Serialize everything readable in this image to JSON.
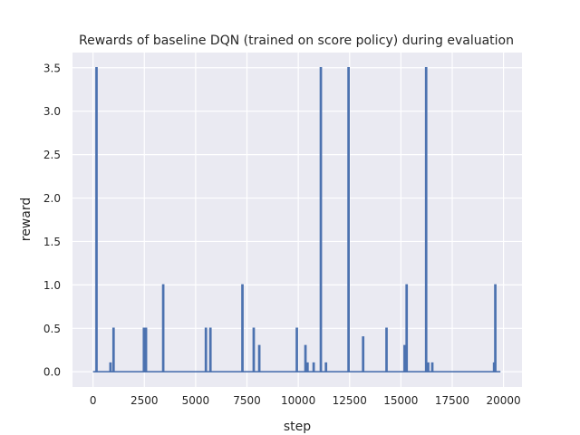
{
  "chart_data": {
    "type": "line",
    "title": "Rewards of baseline DQN (trained on score policy) during evaluation",
    "xlabel": "step",
    "ylabel": "reward",
    "xlim": [
      -1000,
      20900
    ],
    "ylim": [
      -0.175,
      3.675
    ],
    "xticks": [
      0,
      2500,
      5000,
      7500,
      10000,
      12500,
      15000,
      17500,
      20000
    ],
    "yticks": [
      0.0,
      0.5,
      1.0,
      1.5,
      2.0,
      2.5,
      3.0,
      3.5
    ],
    "xtick_labels": [
      "0",
      "2500",
      "5000",
      "7500",
      "10000",
      "12500",
      "15000",
      "17500",
      "20000"
    ],
    "ytick_labels": [
      "0.0",
      "0.5",
      "1.0",
      "1.5",
      "2.0",
      "2.5",
      "3.0",
      "3.5"
    ],
    "grid": true,
    "baseline": 0.0,
    "x_end": 19850,
    "series": [
      {
        "color": "#4c72b0",
        "spikes": [
          {
            "x": 170,
            "y": 3.5
          },
          {
            "x": 850,
            "y": 0.1
          },
          {
            "x": 1000,
            "y": 0.5
          },
          {
            "x": 2480,
            "y": 0.5
          },
          {
            "x": 2580,
            "y": 0.5
          },
          {
            "x": 3420,
            "y": 1.0
          },
          {
            "x": 5500,
            "y": 0.5
          },
          {
            "x": 5720,
            "y": 0.5
          },
          {
            "x": 7280,
            "y": 1.0
          },
          {
            "x": 7830,
            "y": 0.5
          },
          {
            "x": 8100,
            "y": 0.3
          },
          {
            "x": 9930,
            "y": 0.5
          },
          {
            "x": 10350,
            "y": 0.3
          },
          {
            "x": 10450,
            "y": 0.1
          },
          {
            "x": 10750,
            "y": 0.1
          },
          {
            "x": 11100,
            "y": 3.5
          },
          {
            "x": 11350,
            "y": 0.1
          },
          {
            "x": 12450,
            "y": 3.5
          },
          {
            "x": 13160,
            "y": 0.4
          },
          {
            "x": 14300,
            "y": 0.5
          },
          {
            "x": 15180,
            "y": 0.3
          },
          {
            "x": 15280,
            "y": 1.0
          },
          {
            "x": 16230,
            "y": 3.5
          },
          {
            "x": 16330,
            "y": 0.1
          },
          {
            "x": 16530,
            "y": 0.1
          },
          {
            "x": 19540,
            "y": 0.1
          },
          {
            "x": 19600,
            "y": 1.0
          }
        ]
      }
    ]
  }
}
